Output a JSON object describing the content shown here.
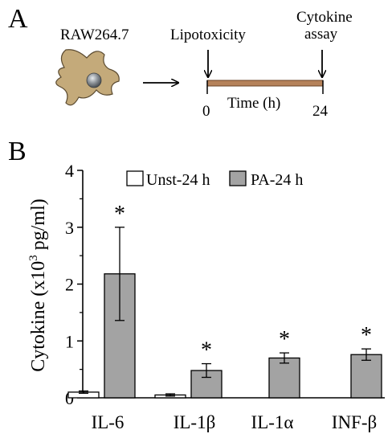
{
  "panel_a": {
    "letter": "A",
    "cell_label": "RAW264.7",
    "start_label": "Lipotoxicity",
    "end_label_line1": "Cytokine",
    "end_label_line2": "assay",
    "axis_label": "Time (h)",
    "tick_start": "0",
    "tick_end": "24",
    "colors": {
      "cell": "#c4aa7a",
      "nucleus": "#8a9096",
      "timeline": "#b5825a"
    }
  },
  "panel_b": {
    "letter": "B"
  },
  "chart_data": {
    "type": "bar",
    "categories": [
      "IL-6",
      "IL-1β",
      "IL-1α",
      "INF-β"
    ],
    "series": [
      {
        "name": "Unst-24 h",
        "values": [
          0.1,
          0.05,
          0,
          0
        ],
        "errors": [
          0.02,
          0.02,
          0,
          0
        ],
        "color": "#ffffff"
      },
      {
        "name": "PA-24 h",
        "values": [
          2.18,
          0.48,
          0.7,
          0.76
        ],
        "errors": [
          0.82,
          0.12,
          0.09,
          0.1
        ],
        "color": "#a3a3a3"
      }
    ],
    "significance": [
      "*",
      "*",
      "*",
      "*"
    ],
    "ylabel_main": "Cytokine (x10",
    "ylabel_sup": "3",
    "ylabel_tail": " pg/ml)",
    "yticks": [
      0,
      1,
      2,
      3,
      4
    ],
    "ylim": [
      0,
      4
    ],
    "legend_position": "top"
  }
}
